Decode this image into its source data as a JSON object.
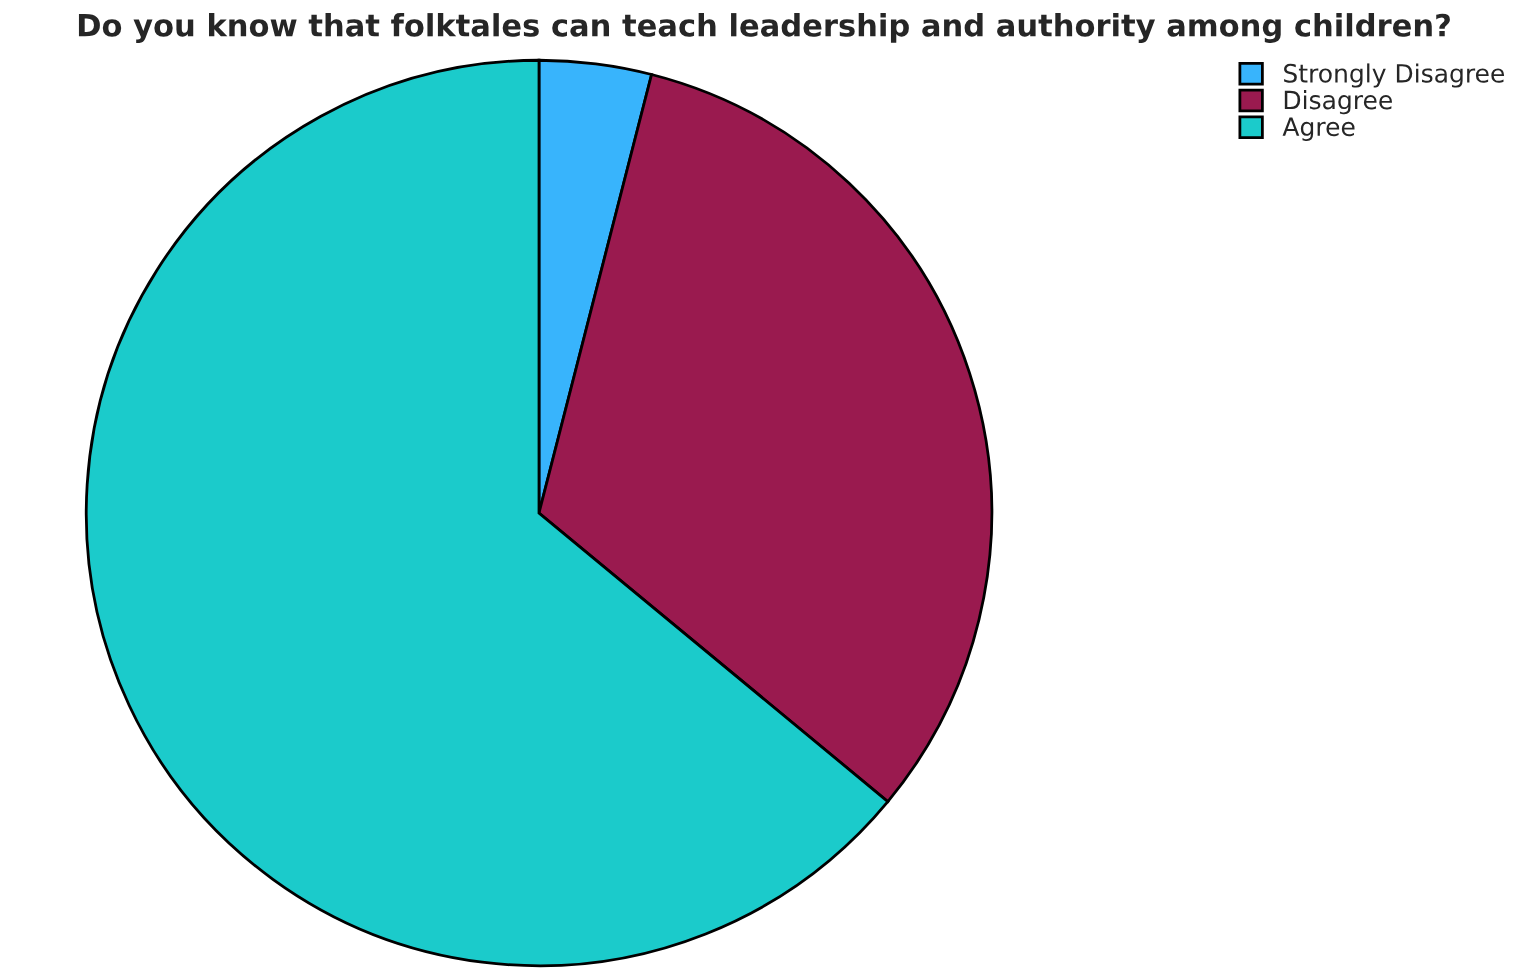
{
  "chart_data": {
    "type": "pie",
    "title": "Do you know that folktales can teach leadership and authority among children?",
    "categories": [
      "Strongly Disagree",
      "Disagree",
      "Agree"
    ],
    "values": [
      4,
      32,
      64
    ],
    "colors": [
      "#38b4fc",
      "#9a1a4f",
      "#1bcbcb"
    ],
    "legend": "top right"
  }
}
